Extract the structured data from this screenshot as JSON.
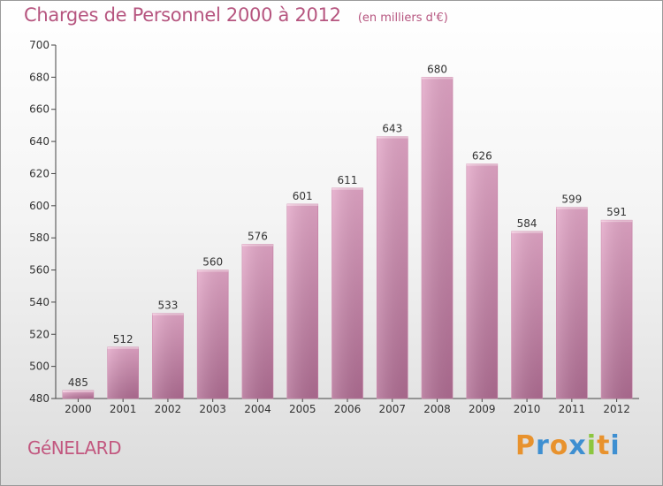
{
  "chart_data": {
    "type": "bar",
    "title": "Charges de Personnel 2000 à 2012",
    "subtitle": "(en milliers d'€)",
    "categories": [
      "2000",
      "2001",
      "2002",
      "2003",
      "2004",
      "2005",
      "2006",
      "2007",
      "2008",
      "2009",
      "2010",
      "2011",
      "2012"
    ],
    "values": [
      485,
      512,
      533,
      560,
      576,
      601,
      611,
      643,
      680,
      626,
      584,
      599,
      591
    ],
    "ylim": [
      480,
      700
    ],
    "yticks": [
      480,
      500,
      520,
      540,
      560,
      580,
      600,
      620,
      640,
      660,
      680,
      700
    ],
    "grid": false,
    "bar_color_top": "#e3a6c7",
    "bar_color_bottom": "#b06d93",
    "axis_text_color": "#333333"
  },
  "commune_name": "GéNELARD",
  "logo": {
    "letters": [
      "P",
      "r",
      "o",
      "x",
      "i",
      "t",
      "i"
    ],
    "colors": [
      "#e8922d",
      "#3e8fd1",
      "#e8922d",
      "#3e8fd1",
      "#8cc63f",
      "#e8922d",
      "#3e8fd1"
    ]
  }
}
